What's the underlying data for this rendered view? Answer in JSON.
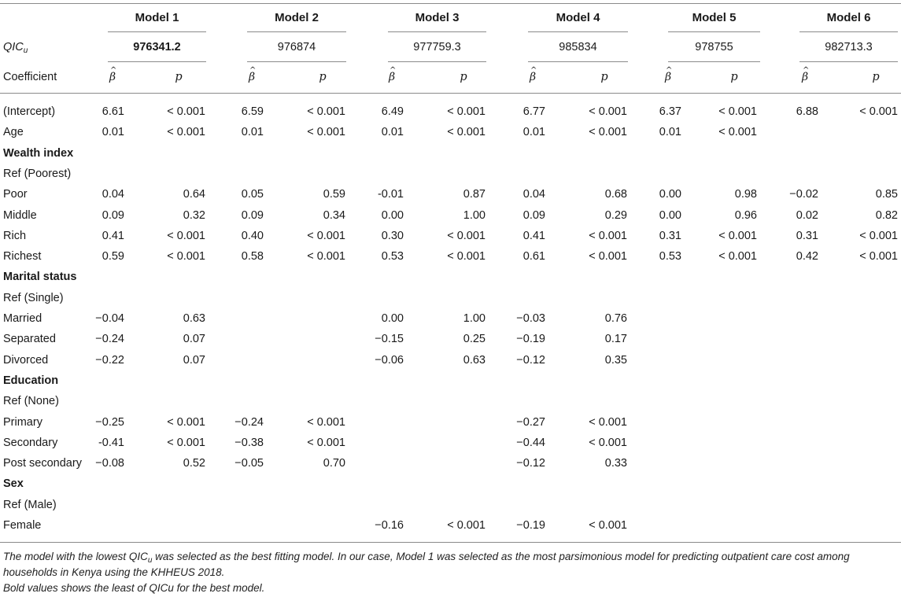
{
  "models": [
    {
      "title": "Model 1",
      "qic": "976341.2",
      "qic_bold": true
    },
    {
      "title": "Model 2",
      "qic": "976874",
      "qic_bold": false
    },
    {
      "title": "Model 3",
      "qic": "977759.3",
      "qic_bold": false
    },
    {
      "title": "Model 4",
      "qic": "985834",
      "qic_bold": false
    },
    {
      "title": "Model 5",
      "qic": "978755",
      "qic_bold": false
    },
    {
      "title": "Model 6",
      "qic": "982713.3",
      "qic_bold": false
    }
  ],
  "qic_label": {
    "main": "QIC",
    "sub": "u"
  },
  "coef_label": "Coefficient",
  "beta_symbol": "β",
  "p_symbol": "p",
  "rows": [
    {
      "label": "(Intercept)",
      "type": "row",
      "cells": [
        [
          "6.61",
          "< 0.001"
        ],
        [
          "6.59",
          "< 0.001"
        ],
        [
          "6.49",
          "< 0.001"
        ],
        [
          "6.77",
          "< 0.001"
        ],
        [
          "6.37",
          "< 0.001"
        ],
        [
          "6.88",
          "< 0.001"
        ]
      ]
    },
    {
      "label": "Age",
      "type": "row",
      "cells": [
        [
          "0.01",
          "< 0.001"
        ],
        [
          "0.01",
          "< 0.001"
        ],
        [
          "0.01",
          "< 0.001"
        ],
        [
          "0.01",
          "< 0.001"
        ],
        [
          "0.01",
          "< 0.001"
        ],
        null
      ]
    },
    {
      "label": "Wealth index",
      "type": "section"
    },
    {
      "label": "Ref (Poorest)",
      "type": "ref"
    },
    {
      "label": "Poor",
      "type": "row",
      "cells": [
        [
          "0.04",
          "0.64"
        ],
        [
          "0.05",
          "0.59"
        ],
        [
          "-0.01",
          "0.87"
        ],
        [
          "0.04",
          "0.68"
        ],
        [
          "0.00",
          "0.98"
        ],
        [
          "−0.02",
          "0.85"
        ]
      ]
    },
    {
      "label": "Middle",
      "type": "row",
      "cells": [
        [
          "0.09",
          "0.32"
        ],
        [
          "0.09",
          "0.34"
        ],
        [
          "0.00",
          "1.00"
        ],
        [
          "0.09",
          "0.29"
        ],
        [
          "0.00",
          "0.96"
        ],
        [
          "0.02",
          "0.82"
        ]
      ]
    },
    {
      "label": "Rich",
      "type": "row",
      "cells": [
        [
          "0.41",
          "< 0.001"
        ],
        [
          "0.40",
          "< 0.001"
        ],
        [
          "0.30",
          "< 0.001"
        ],
        [
          "0.41",
          "< 0.001"
        ],
        [
          "0.31",
          "< 0.001"
        ],
        [
          "0.31",
          "< 0.001"
        ]
      ]
    },
    {
      "label": "Richest",
      "type": "row",
      "cells": [
        [
          "0.59",
          "< 0.001"
        ],
        [
          "0.58",
          "< 0.001"
        ],
        [
          "0.53",
          "< 0.001"
        ],
        [
          "0.61",
          "< 0.001"
        ],
        [
          "0.53",
          "< 0.001"
        ],
        [
          "0.42",
          "< 0.001"
        ]
      ]
    },
    {
      "label": "Marital status",
      "type": "section"
    },
    {
      "label": "Ref (Single)",
      "type": "ref"
    },
    {
      "label": "Married",
      "type": "row",
      "cells": [
        [
          "−0.04",
          "0.63"
        ],
        null,
        [
          "0.00",
          "1.00"
        ],
        [
          "−0.03",
          "0.76"
        ],
        null,
        null
      ]
    },
    {
      "label": "Separated",
      "type": "row",
      "cells": [
        [
          "−0.24",
          "0.07"
        ],
        null,
        [
          "−0.15",
          "0.25"
        ],
        [
          "−0.19",
          "0.17"
        ],
        null,
        null
      ]
    },
    {
      "label": "Divorced",
      "type": "row",
      "cells": [
        [
          "−0.22",
          "0.07"
        ],
        null,
        [
          "−0.06",
          "0.63"
        ],
        [
          "−0.12",
          "0.35"
        ],
        null,
        null
      ]
    },
    {
      "label": "Education",
      "type": "section"
    },
    {
      "label": "Ref (None)",
      "type": "ref"
    },
    {
      "label": "Primary",
      "type": "row",
      "cells": [
        [
          "−0.25",
          "< 0.001"
        ],
        [
          "−0.24",
          "< 0.001"
        ],
        null,
        [
          "−0.27",
          "< 0.001"
        ],
        null,
        null
      ]
    },
    {
      "label": "Secondary",
      "type": "row",
      "cells": [
        [
          "-0.41",
          "< 0.001"
        ],
        [
          "−0.38",
          "< 0.001"
        ],
        null,
        [
          "−0.44",
          "< 0.001"
        ],
        null,
        null
      ]
    },
    {
      "label": "Post secondary",
      "type": "row",
      "cells": [
        [
          "−0.08",
          "0.52"
        ],
        [
          "−0.05",
          "0.70"
        ],
        null,
        [
          "−0.12",
          "0.33"
        ],
        null,
        null
      ]
    },
    {
      "label": "Sex",
      "type": "section"
    },
    {
      "label": "Ref (Male)",
      "type": "ref"
    },
    {
      "label": "Female",
      "type": "row",
      "cells": [
        null,
        null,
        [
          "−0.16",
          "< 0.001"
        ],
        [
          "−0.19",
          "< 0.001"
        ],
        null,
        null
      ]
    }
  ],
  "footnotes": {
    "line1_a": "The model with the lowest ",
    "line1_qic": "QIC",
    "line1_sub": "u",
    "line1_b": " was selected as the best fitting model. In our case, Model 1 was selected as the most parsimonious model for predicting outpatient care cost among",
    "line2": "households in Kenya using the KHHEUS 2018.",
    "line3": "Bold values shows the least of QICu for the best model."
  }
}
